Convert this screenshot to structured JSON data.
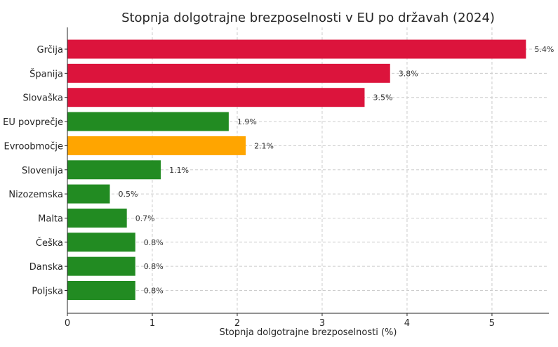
{
  "chart_data": {
    "type": "bar",
    "orientation": "horizontal",
    "title": "Stopnja dolgotrajne brezposelnosti v EU po državah (2024)",
    "xlabel": "Stopnja dolgotrajne brezposelnosti (%)",
    "ylabel": "",
    "xlim": [
      0,
      5.67
    ],
    "xticks": [
      "0",
      "1",
      "2",
      "3",
      "4",
      "5"
    ],
    "grid": true,
    "categories": [
      "Grčija",
      "Španija",
      "Slovaška",
      "EU povprečje",
      "Evroobmočje",
      "Slovenija",
      "Nizozemska",
      "Malta",
      "Češka",
      "Danska",
      "Poljska"
    ],
    "values": [
      5.4,
      3.8,
      3.5,
      1.9,
      2.1,
      1.1,
      0.5,
      0.7,
      0.8,
      0.8,
      0.8
    ],
    "value_labels": [
      "5.4%",
      "3.8%",
      "3.5%",
      "1.9%",
      "2.1%",
      "1.1%",
      "0.5%",
      "0.7%",
      "0.8%",
      "0.8%",
      "0.8%"
    ],
    "colors": [
      "#dc143c",
      "#dc143c",
      "#dc143c",
      "#228b22",
      "#ffa500",
      "#228b22",
      "#228b22",
      "#228b22",
      "#228b22",
      "#228b22",
      "#228b22"
    ]
  }
}
